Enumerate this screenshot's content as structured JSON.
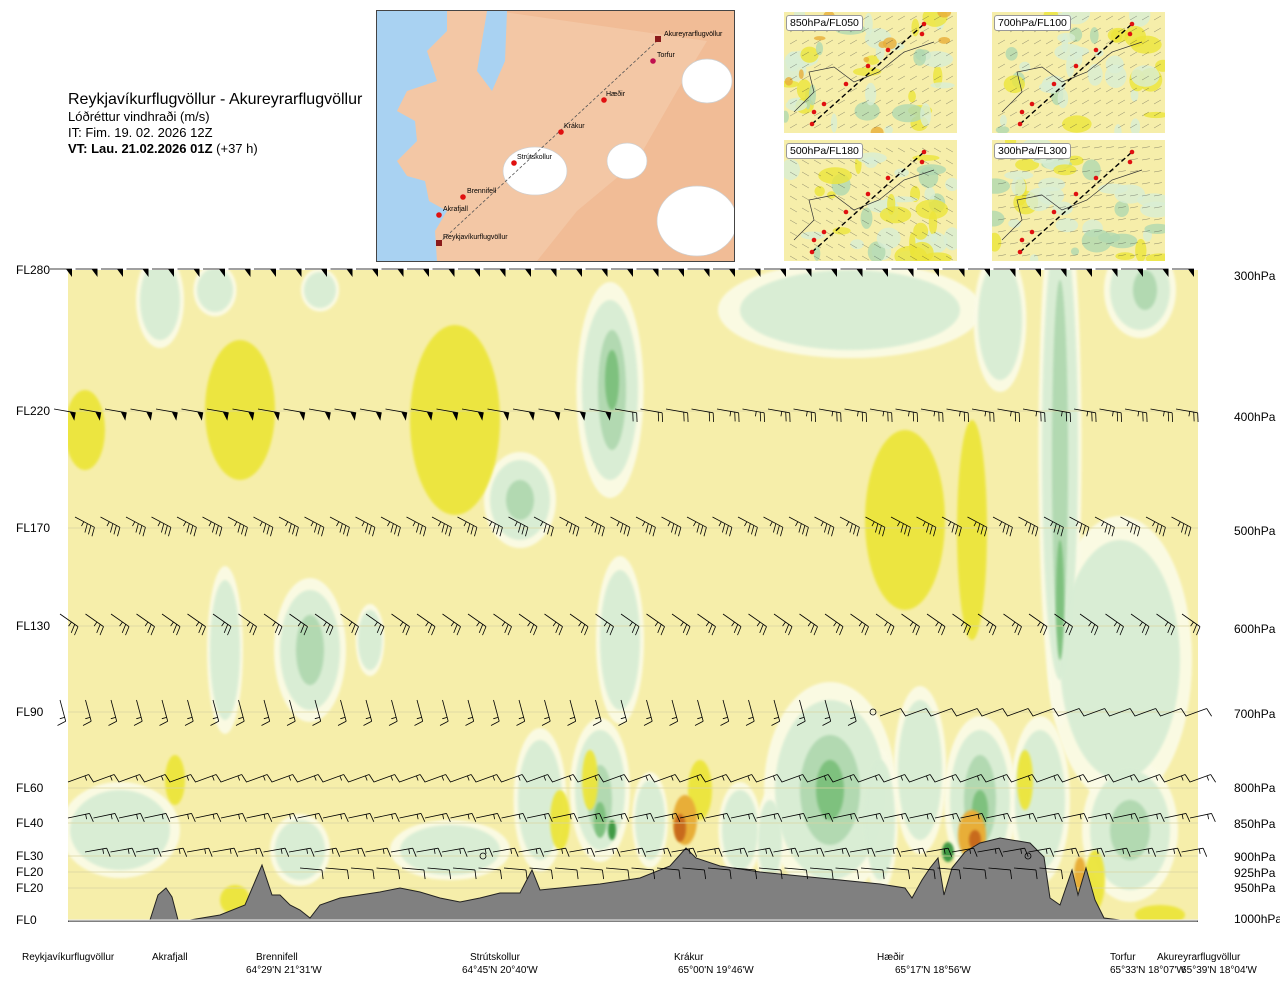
{
  "header": {
    "route": "Reykjavíkurflugvöllur - Akureyrarflugvöllur",
    "variable": "Lóðréttur vindhraði (m/s)",
    "issue_time": "IT: Fim. 19. 02. 2026 12Z",
    "valid_prefix": "VT: Lau. 21.02.2026 01Z",
    "valid_suffix": "(+37 h)"
  },
  "route_map": {
    "points": [
      "Reykjavíkurflugvöllur",
      "Akrafjall",
      "Brennifell",
      "Strútskollur",
      "Krákur",
      "Hæðir",
      "Torfur",
      "Akureyrarflugvöllur"
    ]
  },
  "mini_maps": [
    {
      "label": "850hPa/FL050"
    },
    {
      "label": "700hPa/FL100"
    },
    {
      "label": "500hPa/FL180"
    },
    {
      "label": "300hPa/FL300"
    }
  ],
  "colors": {
    "background": "#f6eeaa",
    "updraft_light": "#ece53a",
    "updraft_mid": "#e8ae38",
    "updraft_strong": "#c86a1c",
    "downdraft_pale": "#fbfbe6",
    "downdraft_light": "#d8edd4",
    "downdraft_mid": "#b0d8b0",
    "downdraft_strong": "#7bc07b",
    "downdraft_max": "#3f9a45",
    "terrain": "#808080",
    "sea": "#a9d2f2",
    "land": "#f3c7a5"
  },
  "chart_data": {
    "type": "heatmap",
    "levels": [
      {
        "fl": "FL280",
        "hpa": "300hPa"
      },
      {
        "fl": "FL220",
        "hpa": "400hPa"
      },
      {
        "fl": "FL170",
        "hpa": "500hPa"
      },
      {
        "fl": "FL130",
        "hpa": "600hPa"
      },
      {
        "fl": "FL90",
        "hpa": "700hPa"
      },
      {
        "fl": "FL60",
        "hpa": "800hPa"
      },
      {
        "fl": "FL40",
        "hpa": "850hPa"
      },
      {
        "fl": "FL30",
        "hpa": "900hPa"
      },
      {
        "fl": "FL20",
        "hpa": "925hPa"
      },
      {
        "fl": "FL20",
        "hpa": "950hPa"
      },
      {
        "fl": "FL0",
        "hpa": "1000hPa"
      }
    ],
    "waypoints": [
      {
        "name": "Reykjavíkurflugvöllur",
        "coord": "",
        "pos": 0.0
      },
      {
        "name": "Akrafjall",
        "coord": "",
        "pos": 0.091
      },
      {
        "name": "Brennifell",
        "coord": "64°29'N 21°31'W",
        "pos": 0.186
      },
      {
        "name": "Strútskollur",
        "coord": "64°45'N 20°40'W",
        "pos": 0.377
      },
      {
        "name": "Krákur",
        "coord": "65°00'N 19°46'W",
        "pos": 0.571
      },
      {
        "name": "Hæðir",
        "coord": "65°17'N 18°56'W",
        "pos": 0.766
      },
      {
        "name": "Torfur",
        "coord": "65°33'N 18°07'W",
        "pos": 0.952
      },
      {
        "name": "Akureyrarflugvöllur",
        "coord": "65°39'N 18°04'W",
        "pos": 1.0
      }
    ]
  }
}
